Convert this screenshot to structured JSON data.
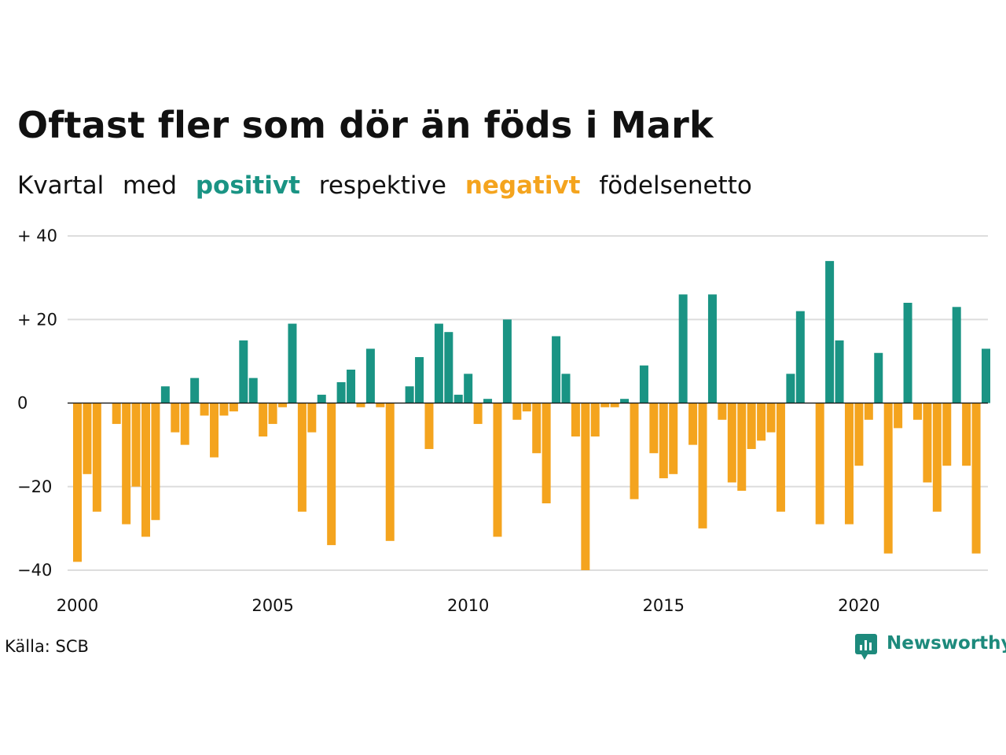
{
  "header": {
    "title": "Oftast fler som dör än föds i Mark",
    "subtitle": {
      "part1": "Kvartal",
      "part2": "med",
      "positive": "positivt",
      "part3": "respektive",
      "negative": "negativt",
      "part4": "födelsenetto"
    }
  },
  "footer": {
    "source": "Källa: SCB",
    "brand": "Newsworthy"
  },
  "colors": {
    "positive": "#1a9484",
    "negative": "#f4a41e",
    "brand": "#1d8a7c"
  },
  "chart_data": {
    "type": "bar",
    "title": "Oftast fler som dör än föds i Mark",
    "subtitle": "Kvartal med positivt respektive negativt födelsenetto",
    "xlabel": "",
    "ylabel": "",
    "ylim": [
      -40,
      40
    ],
    "y_ticks": [
      {
        "value": 40,
        "label": "+ 40"
      },
      {
        "value": 20,
        "label": "+ 20"
      },
      {
        "value": 0,
        "label": "0"
      },
      {
        "value": -20,
        "label": "−20"
      },
      {
        "value": -40,
        "label": "−40"
      }
    ],
    "x_ticks": [
      "2000",
      "2005",
      "2010",
      "2015",
      "2020"
    ],
    "grid": true,
    "start": "2000 Q1",
    "frequency": "quarterly",
    "values": [
      -38,
      -17,
      -26,
      0,
      -5,
      -29,
      -20,
      -32,
      -28,
      4,
      -7,
      -10,
      6,
      -3,
      -13,
      -3,
      -2,
      15,
      6,
      -8,
      -5,
      -1,
      19,
      -26,
      -7,
      2,
      -34,
      5,
      8,
      -1,
      13,
      -1,
      -33,
      0,
      4,
      11,
      -11,
      19,
      17,
      2,
      7,
      -5,
      1,
      -32,
      20,
      -4,
      -2,
      -12,
      -24,
      16,
      7,
      -8,
      -40,
      -8,
      -1,
      -1,
      1,
      -23,
      9,
      -12,
      -18,
      -17,
      26,
      -10,
      -30,
      26,
      -4,
      -19,
      -21,
      -11,
      -9,
      -7,
      -26,
      7,
      22,
      0,
      -29,
      34,
      15,
      -29,
      -15,
      -4,
      12,
      -36,
      -6,
      24,
      -4,
      -19,
      -26,
      -15,
      23,
      -15,
      -36,
      13
    ]
  }
}
